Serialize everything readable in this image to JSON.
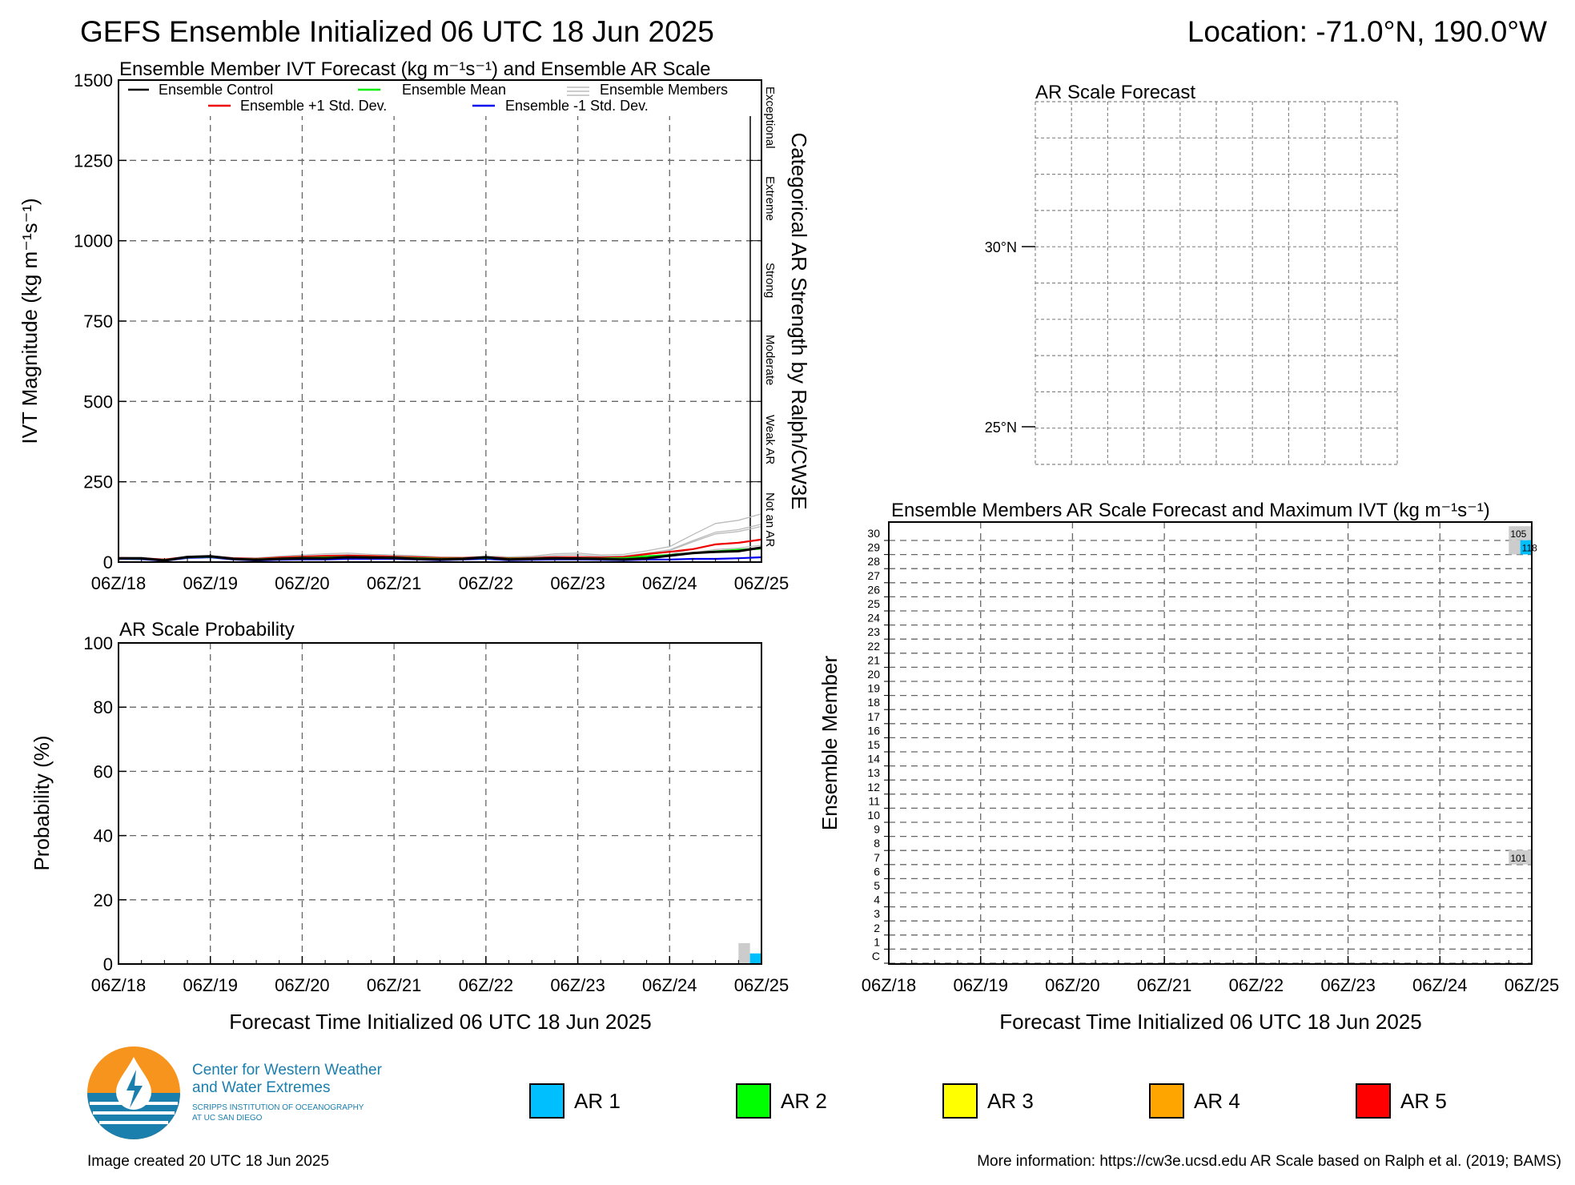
{
  "header": {
    "title": "GEFS Ensemble Initialized 06 UTC 18 Jun 2025",
    "location": "Location: -71.0°N, 190.0°W"
  },
  "footer": {
    "created": "Image created 20 UTC 18 Jun 2025",
    "more_info": "More information: https://cw3e.ucsd.edu AR Scale based on Ralph et al. (2019; BAMS)"
  },
  "logo": {
    "line1": "Center for Western Weather",
    "line2": "and Water Extremes",
    "line3": "SCRIPPS INSTITUTION OF OCEANOGRAPHY",
    "line4": "AT UC SAN DIEGO"
  },
  "colors": {
    "control": "#000000",
    "mean": "#00ee00",
    "members": "#bbbbbb",
    "plus_sd": "#ee0000",
    "minus_sd": "#0000ee",
    "ar1": "#00bfff",
    "ar2": "#00ff00",
    "ar3": "#ffff00",
    "ar4": "#ffa500",
    "ar5": "#ff0000",
    "below_ar": "#cccccc",
    "logo_orange": "#f7941d",
    "logo_blue": "#1b7fae"
  },
  "ar_legend": [
    "AR 1",
    "AR 2",
    "AR 3",
    "AR 4",
    "AR 5"
  ],
  "chart_data": [
    {
      "id": "ivt",
      "type": "line",
      "title": "Ensemble Member IVT Forecast (kg m⁻¹s⁻¹) and Ensemble AR Scale",
      "ylabel": "IVT Magnitude (kg m⁻¹s⁻¹)",
      "right_label": "Categorical AR Strength by Ralph/CW3E",
      "categories_right": [
        "Exceptional",
        "Extreme",
        "Strong",
        "Moderate",
        "Weak AR",
        "Not an AR"
      ],
      "x_tick_labels": [
        "06Z/18",
        "06Z/19",
        "06Z/20",
        "06Z/21",
        "06Z/22",
        "06Z/23",
        "06Z/24",
        "06Z/25"
      ],
      "xlim": [
        0,
        168
      ],
      "ylim": [
        0,
        1500
      ],
      "yticks": [
        0,
        250,
        500,
        750,
        1000,
        1250,
        1500
      ],
      "grid": true,
      "legend": [
        {
          "name": "Ensemble Control"
        },
        {
          "name": "Ensemble Mean"
        },
        {
          "name": "Ensemble Members"
        },
        {
          "name": "Ensemble +1 Std. Dev."
        },
        {
          "name": "Ensemble -1 Std. Dev."
        }
      ],
      "x": [
        0,
        6,
        12,
        18,
        24,
        30,
        36,
        42,
        48,
        54,
        60,
        66,
        72,
        78,
        84,
        90,
        96,
        102,
        108,
        114,
        120,
        126,
        132,
        138,
        144,
        150,
        156,
        162,
        168
      ],
      "series": [
        {
          "name": "Ensemble Control",
          "values": [
            12,
            12,
            5,
            16,
            18,
            10,
            7,
            10,
            12,
            12,
            15,
            14,
            13,
            10,
            8,
            10,
            15,
            8,
            10,
            12,
            11,
            10,
            8,
            12,
            20,
            28,
            32,
            34,
            45
          ]
        },
        {
          "name": "Ensemble Mean",
          "values": [
            12,
            11,
            6,
            15,
            17,
            10,
            8,
            11,
            13,
            14,
            16,
            15,
            14,
            12,
            10,
            11,
            13,
            10,
            11,
            12,
            12,
            11,
            12,
            18,
            22,
            28,
            33,
            38,
            42
          ]
        },
        {
          "name": "Ensemble +1 Std. Dev.",
          "values": [
            13,
            12,
            8,
            16,
            18,
            12,
            10,
            14,
            17,
            19,
            20,
            19,
            17,
            15,
            13,
            13,
            15,
            12,
            13,
            15,
            15,
            14,
            16,
            25,
            32,
            40,
            55,
            60,
            70
          ]
        },
        {
          "name": "Ensemble -1 Std. Dev.",
          "values": [
            10,
            9,
            4,
            13,
            15,
            8,
            5,
            7,
            8,
            8,
            10,
            10,
            10,
            8,
            6,
            8,
            10,
            6,
            7,
            8,
            8,
            7,
            6,
            8,
            8,
            10,
            10,
            12,
            15
          ]
        }
      ],
      "members_range": {
        "min": [
          8,
          8,
          3,
          12,
          14,
          6,
          4,
          6,
          7,
          8,
          9,
          9,
          9,
          7,
          5,
          6,
          9,
          5,
          6,
          7,
          6,
          6,
          5,
          6,
          8,
          10,
          12,
          14,
          20
        ],
        "max": [
          14,
          14,
          9,
          18,
          20,
          14,
          13,
          18,
          22,
          26,
          28,
          24,
          22,
          20,
          16,
          15,
          19,
          16,
          18,
          26,
          28,
          22,
          24,
          35,
          48,
          85,
          120,
          130,
          150
        ]
      }
    },
    {
      "id": "prob",
      "type": "bar",
      "title": "AR Scale Probability",
      "ylabel": "Probability (%)",
      "xlabel": "Forecast Time Initialized 06 UTC 18 Jun 2025",
      "x_tick_labels": [
        "06Z/18",
        "06Z/19",
        "06Z/20",
        "06Z/21",
        "06Z/22",
        "06Z/23",
        "06Z/24",
        "06Z/25"
      ],
      "xlim": [
        0,
        168
      ],
      "ylim": [
        0,
        100
      ],
      "yticks": [
        0,
        20,
        40,
        60,
        80,
        100
      ],
      "bars": [
        {
          "x": 162,
          "width": 3,
          "value": 6.5,
          "category": "below_ar"
        },
        {
          "x": 165,
          "width": 3,
          "value": 3.3,
          "category": "ar1"
        }
      ]
    },
    {
      "id": "map",
      "type": "table",
      "title": "AR Scale Forecast",
      "lat_labels": [
        "30°N",
        "25°N"
      ]
    },
    {
      "id": "members",
      "type": "heatmap",
      "title": "Ensemble Members AR Scale Forecast and Maximum IVT (kg m⁻¹s⁻¹)",
      "ylabel": "Ensemble Member",
      "xlabel": "Forecast Time Initialized 06 UTC 18 Jun 2025",
      "x_tick_labels": [
        "06Z/18",
        "06Z/19",
        "06Z/20",
        "06Z/21",
        "06Z/22",
        "06Z/23",
        "06Z/24",
        "06Z/25"
      ],
      "y_tick_labels": [
        "C",
        "1",
        "2",
        "3",
        "4",
        "5",
        "6",
        "7",
        "8",
        "9",
        "10",
        "11",
        "12",
        "13",
        "14",
        "15",
        "16",
        "17",
        "18",
        "19",
        "20",
        "21",
        "22",
        "23",
        "24",
        "25",
        "26",
        "27",
        "28",
        "29",
        "30"
      ],
      "xlim": [
        0,
        168
      ],
      "cells": [
        {
          "member": 30,
          "x": 162,
          "width": 6,
          "category": "below_ar",
          "label": "105"
        },
        {
          "member": 29,
          "x": 162,
          "width": 3,
          "category": "below_ar",
          "label": ""
        },
        {
          "member": 29,
          "x": 165,
          "width": 3,
          "category": "ar1",
          "label": "118"
        },
        {
          "member": 7,
          "x": 162,
          "width": 6,
          "category": "below_ar",
          "label": "101"
        }
      ]
    }
  ]
}
